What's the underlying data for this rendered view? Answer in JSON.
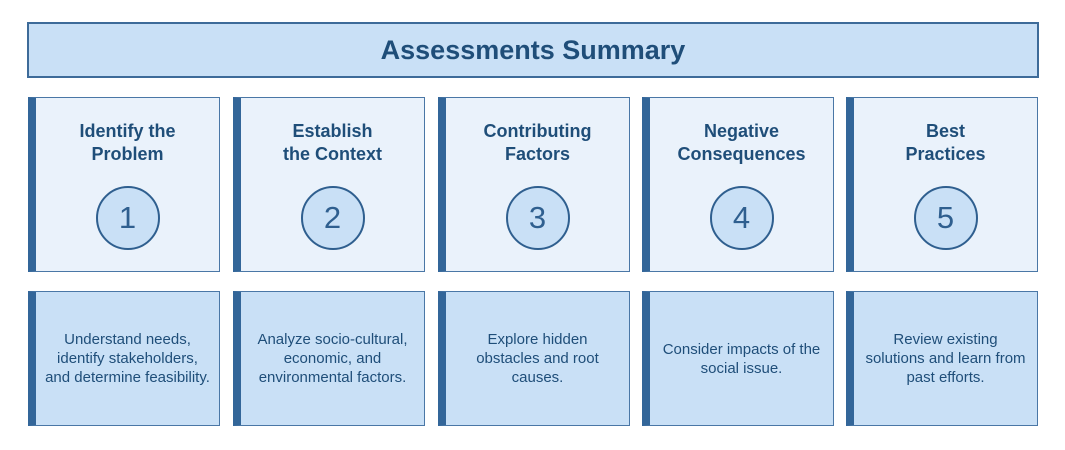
{
  "title": "Assessments Summary",
  "steps": [
    {
      "title": "Identify the\nProblem",
      "number": "1",
      "description": "Understand needs, identify stakeholders, and determine feasibility."
    },
    {
      "title": "Establish\nthe Context",
      "number": "2",
      "description": "Analyze socio-cultural, economic, and environmental factors."
    },
    {
      "title": "Contributing\nFactors",
      "number": "3",
      "description": "Explore hidden obstacles and root causes."
    },
    {
      "title": "Negative\nConsequences",
      "number": "4",
      "description": "Consider impacts of the social issue."
    },
    {
      "title": "Best\nPractices",
      "number": "5",
      "description": "Review existing solutions and learn from past efforts."
    }
  ],
  "colors": {
    "title_fill": "#c9e0f6",
    "card_fill": "#eaf2fb",
    "desc_fill": "#c9e0f6",
    "accent": "#336699",
    "text": "#1f4e79"
  }
}
